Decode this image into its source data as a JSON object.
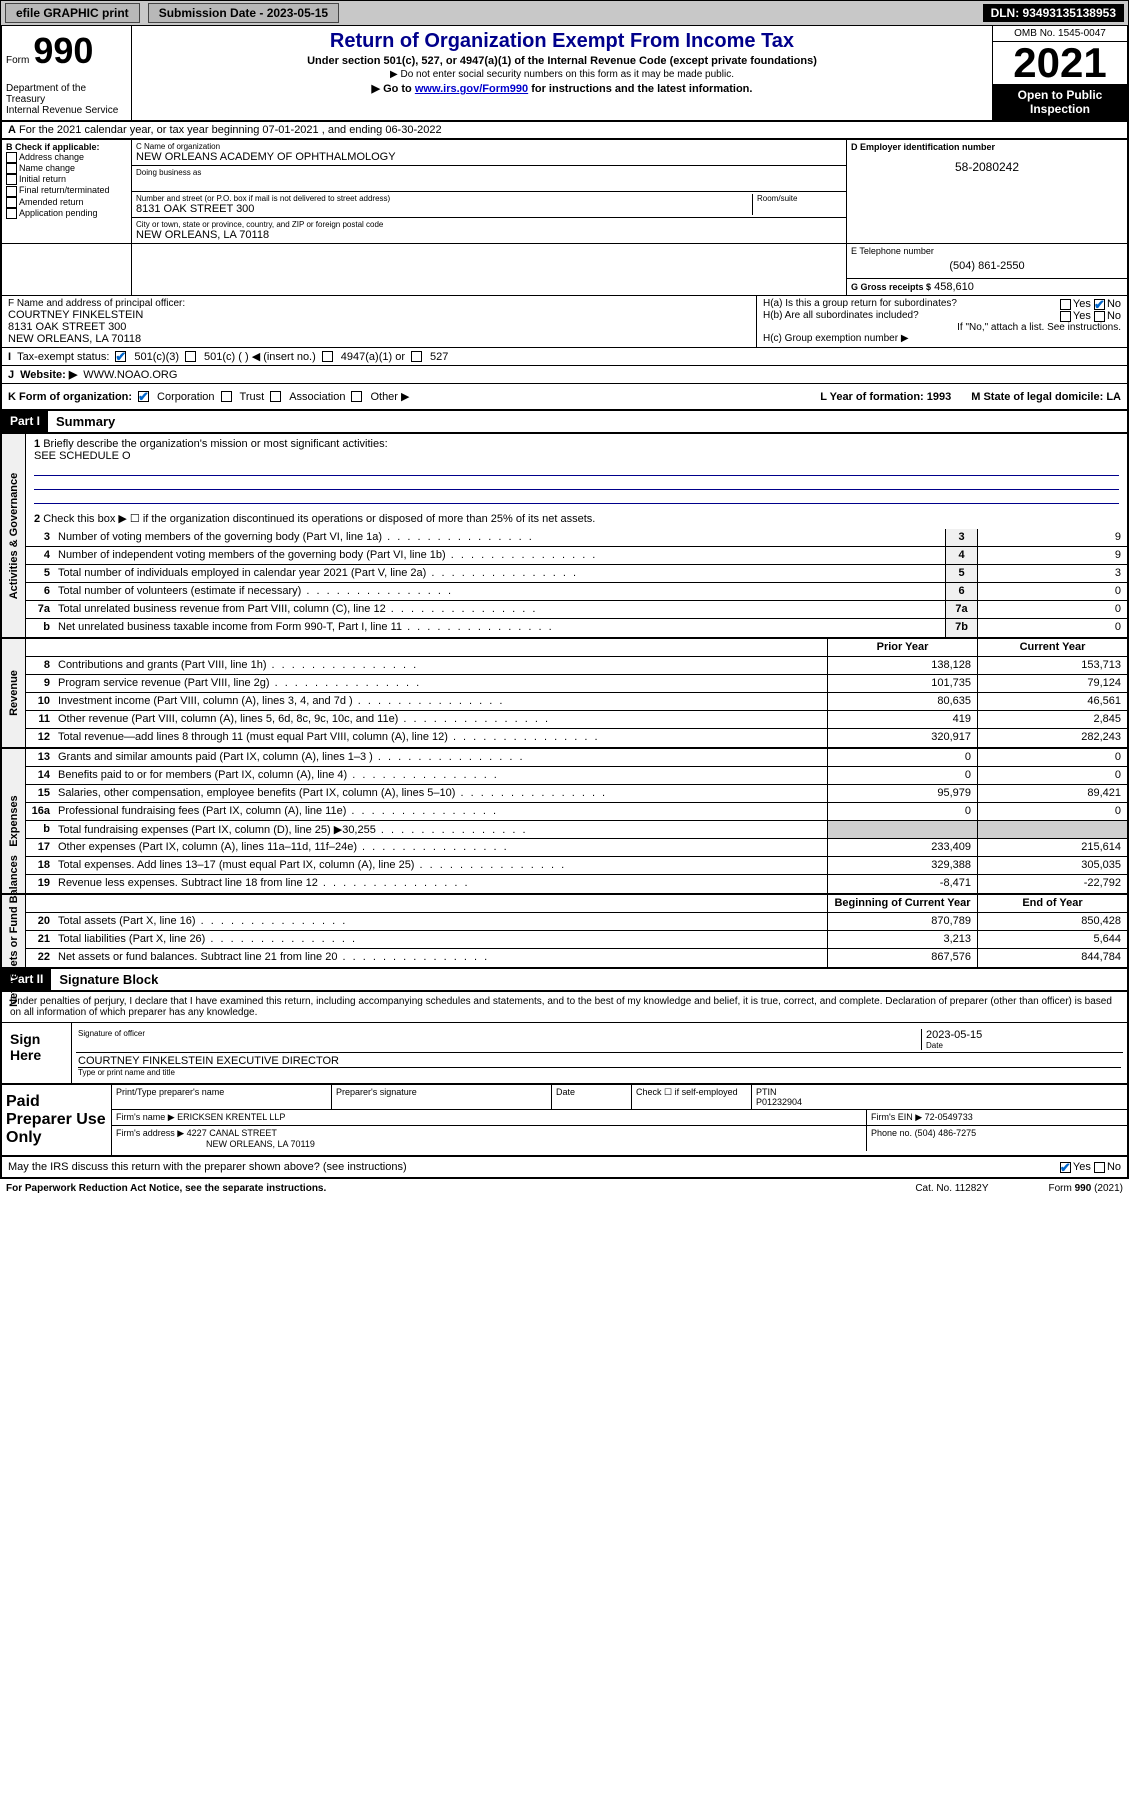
{
  "topbar": {
    "efile": "efile GRAPHIC print",
    "subdate_lbl": "Submission Date - 2023-05-15",
    "dln": "DLN: 93493135138953"
  },
  "hdr": {
    "formword": "Form",
    "formnum": "990",
    "title": "Return of Organization Exempt From Income Tax",
    "sub1": "Under section 501(c), 527, or 4947(a)(1) of the Internal Revenue Code (except private foundations)",
    "sub2": "▶ Do not enter social security numbers on this form as it may be made public.",
    "sub3": "▶ Go to www.irs.gov/Form990 for instructions and the latest information.",
    "dept": "Department of the Treasury",
    "irs": "Internal Revenue Service",
    "omb": "OMB No. 1545-0047",
    "year": "2021",
    "otp": "Open to Public Inspection"
  },
  "A": {
    "text": "For the 2021 calendar year, or tax year beginning 07-01-2021    , and ending 06-30-2022"
  },
  "B": {
    "lbl": "B Check if applicable:",
    "opts": [
      "Address change",
      "Name change",
      "Initial return",
      "Final return/terminated",
      "Amended return",
      "Application pending"
    ]
  },
  "C": {
    "namelbl": "C Name of organization",
    "name": "NEW ORLEANS ACADEMY OF OPHTHALMOLOGY",
    "dbalbl": "Doing business as",
    "dba": "",
    "streetlbl": "Number and street (or P.O. box if mail is not delivered to street address)",
    "roomlbl": "Room/suite",
    "street": "8131 OAK STREET 300",
    "citylbl": "City or town, state or province, country, and ZIP or foreign postal code",
    "city": "NEW ORLEANS, LA   70118"
  },
  "D": {
    "lbl": "D Employer identification number",
    "val": "58-2080242"
  },
  "E": {
    "lbl": "E Telephone number",
    "val": "(504) 861-2550"
  },
  "G": {
    "lbl": "G Gross receipts $",
    "val": "458,610"
  },
  "F": {
    "lbl": "F  Name and address of principal officer:",
    "name": "COURTNEY FINKELSTEIN",
    "addr1": "8131 OAK STREET 300",
    "addr2": "NEW ORLEANS, LA  70118"
  },
  "H": {
    "a": "H(a)  Is this a group return for subordinates?",
    "b": "H(b)  Are all subordinates included?",
    "bnote": "If \"No,\" attach a list. See instructions.",
    "c": "H(c)  Group exemption number ▶"
  },
  "I": {
    "lbl": "Tax-exempt status:",
    "o1": "501(c)(3)",
    "o2": "501(c) (  ) ◀ (insert no.)",
    "o3": "4947(a)(1) or",
    "o4": "527"
  },
  "J": {
    "lbl": "Website: ▶",
    "val": "WWW.NOAO.ORG"
  },
  "K": {
    "lbl": "K Form of organization:",
    "o1": "Corporation",
    "o2": "Trust",
    "o3": "Association",
    "o4": "Other ▶"
  },
  "L": {
    "lbl": "L Year of formation: 1993"
  },
  "M": {
    "lbl": "M State of legal domicile: LA"
  },
  "p1": {
    "hdr": "Part I",
    "title": "Summary",
    "l1": "Briefly describe the organization's mission or most significant activities:",
    "l1v": "SEE SCHEDULE O",
    "l2": "Check this box ▶ ☐  if the organization discontinued its operations or disposed of more than 25% of its net assets.",
    "rows_gov": [
      {
        "n": "3",
        "t": "Number of voting members of the governing body (Part VI, line 1a)",
        "c": "3",
        "v": "9"
      },
      {
        "n": "4",
        "t": "Number of independent voting members of the governing body (Part VI, line 1b)",
        "c": "4",
        "v": "9"
      },
      {
        "n": "5",
        "t": "Total number of individuals employed in calendar year 2021 (Part V, line 2a)",
        "c": "5",
        "v": "3"
      },
      {
        "n": "6",
        "t": "Total number of volunteers (estimate if necessary)",
        "c": "6",
        "v": "0"
      },
      {
        "n": "7a",
        "t": "Total unrelated business revenue from Part VIII, column (C), line 12",
        "c": "7a",
        "v": "0"
      },
      {
        "n": "b",
        "t": "Net unrelated business taxable income from Form 990-T, Part I, line 11",
        "c": "7b",
        "v": "0"
      }
    ],
    "prior": "Prior Year",
    "curr": "Current Year",
    "rows_rev": [
      {
        "n": "8",
        "t": "Contributions and grants (Part VIII, line 1h)",
        "p": "138,128",
        "c": "153,713"
      },
      {
        "n": "9",
        "t": "Program service revenue (Part VIII, line 2g)",
        "p": "101,735",
        "c": "79,124"
      },
      {
        "n": "10",
        "t": "Investment income (Part VIII, column (A), lines 3, 4, and 7d )",
        "p": "80,635",
        "c": "46,561"
      },
      {
        "n": "11",
        "t": "Other revenue (Part VIII, column (A), lines 5, 6d, 8c, 9c, 10c, and 11e)",
        "p": "419",
        "c": "2,845"
      },
      {
        "n": "12",
        "t": "Total revenue—add lines 8 through 11 (must equal Part VIII, column (A), line 12)",
        "p": "320,917",
        "c": "282,243"
      }
    ],
    "rows_exp": [
      {
        "n": "13",
        "t": "Grants and similar amounts paid (Part IX, column (A), lines 1–3 )",
        "p": "0",
        "c": "0"
      },
      {
        "n": "14",
        "t": "Benefits paid to or for members (Part IX, column (A), line 4)",
        "p": "0",
        "c": "0"
      },
      {
        "n": "15",
        "t": "Salaries, other compensation, employee benefits (Part IX, column (A), lines 5–10)",
        "p": "95,979",
        "c": "89,421"
      },
      {
        "n": "16a",
        "t": "Professional fundraising fees (Part IX, column (A), line 11e)",
        "p": "0",
        "c": "0"
      },
      {
        "n": "b",
        "t": "Total fundraising expenses (Part IX, column (D), line 25) ▶30,255",
        "p": "",
        "c": "",
        "shade": true
      },
      {
        "n": "17",
        "t": "Other expenses (Part IX, column (A), lines 11a–11d, 11f–24e)",
        "p": "233,409",
        "c": "215,614"
      },
      {
        "n": "18",
        "t": "Total expenses. Add lines 13–17 (must equal Part IX, column (A), line 25)",
        "p": "329,388",
        "c": "305,035"
      },
      {
        "n": "19",
        "t": "Revenue less expenses. Subtract line 18 from line 12",
        "p": "-8,471",
        "c": "-22,792"
      }
    ],
    "beg": "Beginning of Current Year",
    "end": "End of Year",
    "rows_net": [
      {
        "n": "20",
        "t": "Total assets (Part X, line 16)",
        "p": "870,789",
        "c": "850,428"
      },
      {
        "n": "21",
        "t": "Total liabilities (Part X, line 26)",
        "p": "3,213",
        "c": "5,644"
      },
      {
        "n": "22",
        "t": "Net assets or fund balances. Subtract line 21 from line 20",
        "p": "867,576",
        "c": "844,784"
      }
    ]
  },
  "p2": {
    "hdr": "Part II",
    "title": "Signature Block",
    "decl": "Under penalties of perjury, I declare that I have examined this return, including accompanying schedules and statements, and to the best of my knowledge and belief, it is true, correct, and complete. Declaration of preparer (other than officer) is based on all information of which preparer has any knowledge.",
    "sign": "Sign Here",
    "siglbl": "Signature of officer",
    "datelbl": "Date",
    "sigdate": "2023-05-15",
    "officer": "COURTNEY FINKELSTEIN  EXECUTIVE DIRECTOR",
    "typelbl": "Type or print name and title",
    "paid": "Paid Preparer Use Only",
    "pt_name": "Print/Type preparer's name",
    "pt_sig": "Preparer's signature",
    "pt_date": "Date",
    "pt_check": "Check ☐  if self-employed",
    "ptin_lbl": "PTIN",
    "ptin": "P01232904",
    "firm_lbl": "Firm's name   ▶",
    "firm": "ERICKSEN KRENTEL LLP",
    "ein_lbl": "Firm's EIN ▶",
    "ein": "72-0549733",
    "addr_lbl": "Firm's address ▶",
    "addr": "4227 CANAL STREET",
    "addr2": "NEW ORLEANS, LA  70119",
    "phone_lbl": "Phone no.",
    "phone": "(504) 486-7275"
  },
  "footer": {
    "q": "May the IRS discuss this return with the preparer shown above? (see instructions)",
    "pra": "For Paperwork Reduction Act Notice, see the separate instructions.",
    "cat": "Cat. No. 11282Y",
    "form": "Form 990 (2021)"
  }
}
